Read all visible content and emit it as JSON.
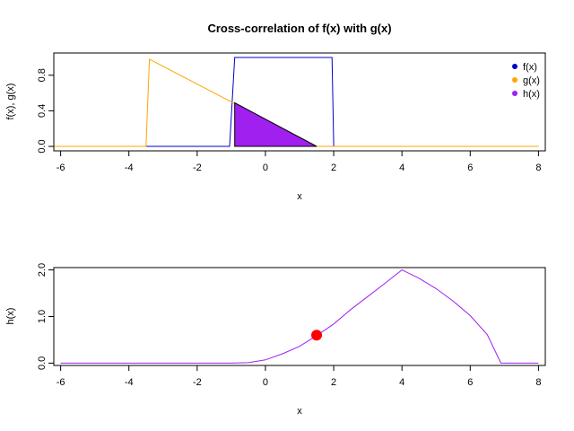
{
  "chart_data": [
    {
      "type": "line",
      "title": "Cross-correlation of f(x) with g(x)",
      "xlabel": "x",
      "ylabel": "f(x), g(x)",
      "xlim": [
        -6.2,
        8.2
      ],
      "ylim": [
        -0.05,
        1.05
      ],
      "xticks": [
        "-6",
        "-4",
        "-2",
        "0",
        "2",
        "4",
        "6",
        "8"
      ],
      "xtick_values": [
        -6,
        -4,
        -2,
        0,
        2,
        4,
        6,
        8
      ],
      "yticks": [
        "0.0",
        "0.4",
        "0.8"
      ],
      "ytick_values": [
        0,
        0.4,
        0.8
      ],
      "legend_position": "top-right",
      "series": [
        {
          "name": "f(x)",
          "color": "#0000CD",
          "x": [
            -6.2,
            -1.05,
            -0.9,
            1.95,
            2.0,
            8.0
          ],
          "y": [
            0,
            0,
            1,
            1,
            0,
            0
          ]
        },
        {
          "name": "g(x)",
          "color": "#FFA500",
          "x": [
            -6.2,
            -3.5,
            -3.4,
            1.5,
            8.0
          ],
          "y": [
            0,
            0,
            0.98,
            0,
            0
          ]
        },
        {
          "name": "h(x)",
          "color": "#A020F0",
          "fill": true,
          "x": [
            -0.9,
            -0.9,
            1.5
          ],
          "y": [
            0,
            0.49,
            0
          ]
        }
      ]
    },
    {
      "type": "line",
      "title": "",
      "xlabel": "x",
      "ylabel": "h(x)",
      "xlim": [
        -6.2,
        8.2
      ],
      "ylim": [
        -0.05,
        2.05
      ],
      "xticks": [
        "-6",
        "-4",
        "-2",
        "0",
        "2",
        "4",
        "6",
        "8"
      ],
      "xtick_values": [
        -6,
        -4,
        -2,
        0,
        2,
        4,
        6,
        8
      ],
      "yticks": [
        "0.0",
        "1.0",
        "2.0"
      ],
      "ytick_values": [
        0,
        1,
        2
      ],
      "series": [
        {
          "name": "h(x)",
          "color": "#A020F0",
          "x": [
            -6.0,
            -1.5,
            -1.0,
            -0.5,
            0.0,
            0.5,
            1.0,
            1.5,
            2.0,
            2.5,
            3.0,
            3.5,
            4.0,
            4.5,
            5.0,
            5.5,
            6.0,
            6.5,
            6.9,
            8.0
          ],
          "y": [
            0,
            0,
            0,
            0.01,
            0.07,
            0.2,
            0.36,
            0.59,
            0.84,
            1.15,
            1.43,
            1.71,
            2.0,
            1.82,
            1.6,
            1.33,
            1.02,
            0.61,
            0.0,
            0.0
          ]
        }
      ],
      "marker": {
        "x": 1.5,
        "y": 0.6,
        "color": "#FF0000"
      }
    }
  ]
}
